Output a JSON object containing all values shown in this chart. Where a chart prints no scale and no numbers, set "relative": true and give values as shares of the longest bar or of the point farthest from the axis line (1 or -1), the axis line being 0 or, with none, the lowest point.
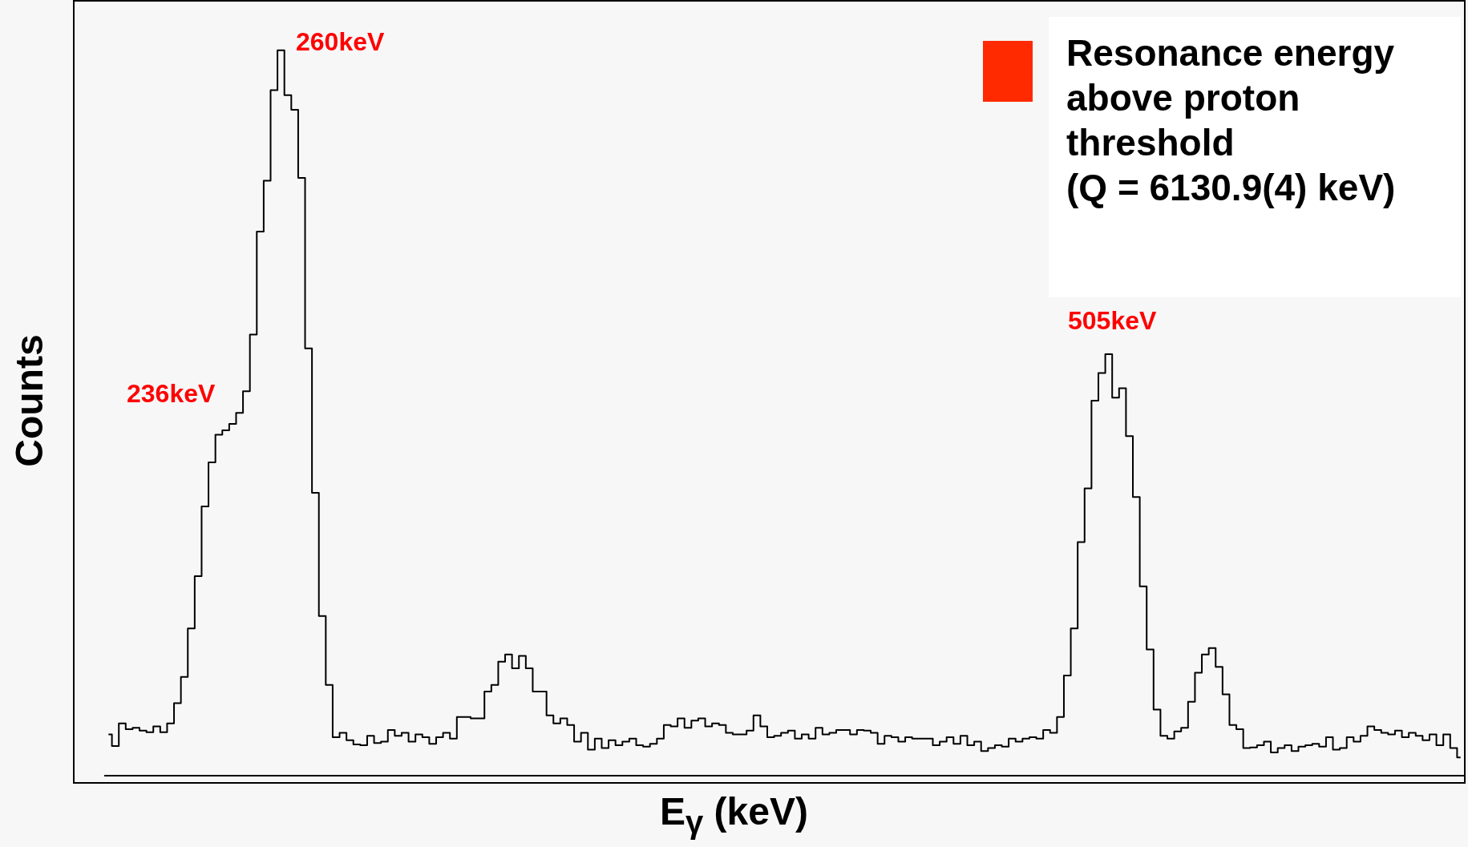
{
  "chart_data": {
    "type": "step",
    "xlabel": "E$_{γ}$ (keV)",
    "ylabel": "Counts",
    "relative": true,
    "categories": [
      null,
      null,
      null,
      null,
      null,
      null,
      null,
      null,
      null,
      null,
      null,
      null,
      null,
      null,
      null,
      null,
      null,
      null,
      null,
      null,
      null,
      null,
      null,
      null,
      null,
      null,
      null,
      null,
      null,
      null,
      null,
      null,
      null,
      null,
      null,
      null,
      null,
      null,
      null,
      null,
      null,
      null,
      null,
      null,
      null,
      null,
      null,
      null,
      null,
      null,
      null,
      null,
      null,
      null,
      null,
      null,
      null,
      null,
      null,
      null,
      null,
      null,
      null,
      null,
      null,
      null,
      null,
      null,
      null,
      null,
      null,
      null,
      null,
      null,
      null,
      null,
      null,
      null,
      null,
      null,
      null,
      null,
      null,
      null,
      null,
      null,
      null,
      null,
      null,
      null,
      null,
      null,
      null,
      null,
      null,
      null,
      null,
      null,
      null,
      null,
      null,
      null,
      null,
      null,
      null,
      null,
      null,
      null,
      null,
      null,
      null,
      null,
      null,
      null,
      null,
      null,
      null,
      null,
      null,
      null,
      null,
      null,
      null,
      null,
      null,
      null,
      null,
      null,
      null,
      null,
      null,
      null,
      null,
      null,
      null,
      null,
      null,
      null,
      null,
      null,
      null,
      null,
      null,
      null,
      null,
      null,
      null,
      null,
      null,
      null,
      null,
      null,
      null,
      null,
      null,
      null,
      null,
      null,
      null,
      null,
      null,
      null,
      null,
      null,
      null,
      null,
      null,
      null,
      null,
      null,
      null,
      null,
      null,
      null,
      null,
      null,
      null,
      null,
      null,
      null,
      null,
      null,
      null,
      null,
      null,
      null,
      null,
      null,
      null,
      null,
      null,
      null,
      null,
      null,
      null,
      null,
      null
    ],
    "series": [
      {
        "color": "#000000",
        "values": [
          0.057,
          0.041,
          0.072,
          0.064,
          0.066,
          0.062,
          0.06,
          0.068,
          0.06,
          0.072,
          0.1,
          0.136,
          0.203,
          0.275,
          0.371,
          0.432,
          0.47,
          0.476,
          0.485,
          0.5,
          0.53,
          0.608,
          0.75,
          0.82,
          0.945,
          1,
          0.938,
          0.918,
          0.824,
          0.589,
          0.39,
          0.22,
          0.125,
          0.053,
          0.059,
          0.049,
          0.043,
          0.042,
          0.055,
          0.045,
          0.047,
          0.063,
          0.055,
          0.059,
          0.047,
          0.057,
          0.053,
          0.044,
          0.053,
          0.059,
          0.051,
          0.081,
          0.081,
          0.079,
          0.079,
          0.116,
          0.125,
          0.157,
          0.167,
          0.148,
          0.165,
          0.148,
          0.116,
          0.116,
          0.083,
          0.072,
          0.079,
          0.07,
          0.047,
          0.059,
          0.036,
          0.051,
          0.038,
          0.049,
          0.042,
          0.047,
          0.051,
          0.042,
          0.04,
          0.044,
          0.051,
          0.07,
          0.068,
          0.079,
          0.066,
          0.076,
          0.079,
          0.068,
          0.072,
          0.07,
          0.059,
          0.057,
          0.057,
          0.062,
          0.083,
          0.068,
          0.053,
          0.055,
          0.059,
          0.062,
          0.051,
          0.057,
          0.051,
          0.066,
          0.057,
          0.059,
          0.063,
          0.063,
          0.057,
          0.063,
          0.062,
          0.059,
          0.044,
          0.055,
          0.053,
          0.047,
          0.053,
          0.051,
          0.051,
          0.051,
          0.042,
          0.047,
          0.053,
          0.044,
          0.055,
          0.042,
          0.047,
          0.034,
          0.038,
          0.042,
          0.04,
          0.051,
          0.047,
          0.051,
          0.053,
          0.051,
          0.063,
          0.059,
          0.081,
          0.138,
          0.203,
          0.322,
          0.396,
          0.517,
          0.555,
          0.581,
          0.521,
          0.534,
          0.468,
          0.384,
          0.261,
          0.174,
          0.091,
          0.055,
          0.051,
          0.061,
          0.066,
          0.102,
          0.142,
          0.167,
          0.176,
          0.15,
          0.112,
          0.07,
          0.064,
          0.038,
          0.039,
          0.042,
          0.047,
          0.032,
          0.038,
          0.042,
          0.034,
          0.04,
          0.042,
          0.044,
          0.04,
          0.053,
          0.036,
          0.038,
          0.053,
          0.047,
          0.055,
          0.068,
          0.063,
          0.059,
          0.057,
          0.062,
          0.053,
          0.059,
          0.055,
          0.049,
          0.057,
          0.042,
          0.057,
          0.038,
          0.025
        ]
      }
    ],
    "annotations": [
      "260keV",
      "236keV",
      "505keV",
      "Resonance energy\nabove proton\nthreshold\n(Q = 6130.9(4) keV)"
    ]
  }
}
